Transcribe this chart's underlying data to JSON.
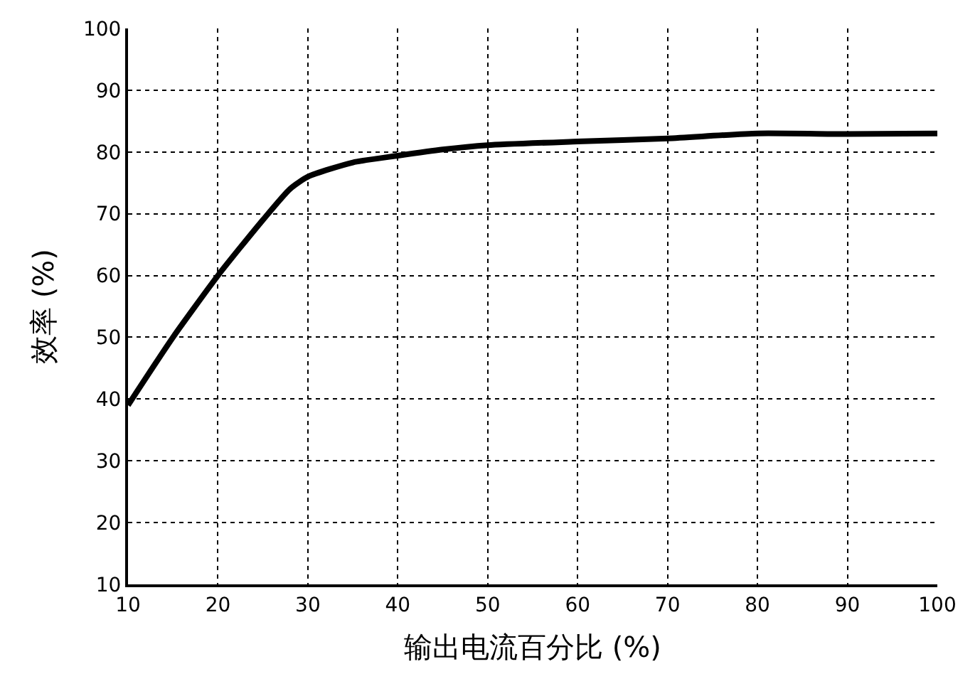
{
  "chart_data": {
    "type": "line",
    "xlabel": "输出电流百分比 (%)",
    "ylabel": "效率 (%)",
    "x": [
      10,
      15,
      20,
      25,
      28,
      30,
      35,
      40,
      45,
      50,
      60,
      70,
      80,
      90,
      100
    ],
    "series": [
      {
        "color": "#000000",
        "values": [
          39,
          50,
          60,
          69,
          74,
          76,
          78.3,
          79.4,
          80.4,
          81.1,
          81.7,
          82.2,
          83,
          82.9,
          83
        ]
      }
    ],
    "xlim": [
      10,
      100
    ],
    "xticks": [
      10,
      20,
      30,
      40,
      50,
      60,
      70,
      80,
      90,
      100
    ],
    "ylim": [
      10,
      100
    ],
    "yticks": [
      10,
      20,
      30,
      40,
      50,
      60,
      70,
      80,
      90,
      100
    ],
    "grid": true,
    "line_style": "solid"
  }
}
